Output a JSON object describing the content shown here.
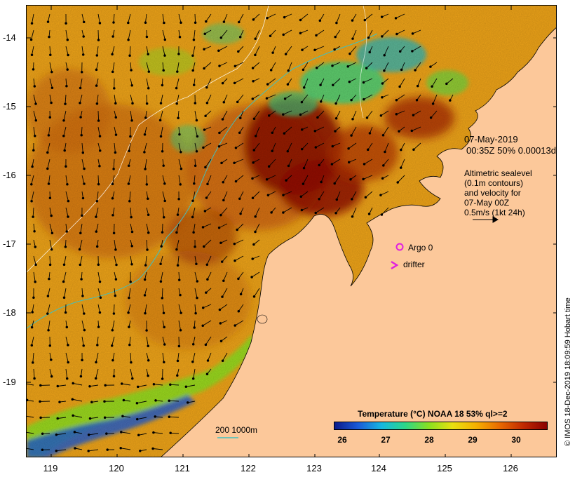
{
  "map": {
    "y_ticks": [
      "-14",
      "-15",
      "-16",
      "-17",
      "-18",
      "-19"
    ],
    "x_ticks": [
      "119",
      "120",
      "121",
      "122",
      "123",
      "124",
      "125",
      "126"
    ],
    "date_label": "07-May-2019",
    "pass_label": "00:35Z  50% 0.00013d",
    "altimetry_note": [
      "Altimetric sealevel",
      "(0.1m contours)",
      "and velocity for",
      "07-May 00Z",
      "0.5m/s (1kt 24h)"
    ],
    "argo_label": "Argo 0",
    "drifter_label": "drifter",
    "depth_contour_label": "200  1000m",
    "credit": "© IMOS 18-Dec-2019 18:09:59 Hobart time",
    "colors": {
      "land": "#fcc89a",
      "argo": "#e020e0",
      "depth_contour": "#3fc0c0",
      "coast": "#000000"
    }
  },
  "colorbar": {
    "title": "Temperature (°C) NOAA 18 53% ql>=2",
    "ticks": [
      "26",
      "27",
      "28",
      "29",
      "30"
    ],
    "stops": [
      "#0a1a8a",
      "#1a5ad8",
      "#16b8e0",
      "#2cd888",
      "#8ae020",
      "#e8e010",
      "#f5b000",
      "#e86a00",
      "#c02800",
      "#8a0000"
    ]
  }
}
